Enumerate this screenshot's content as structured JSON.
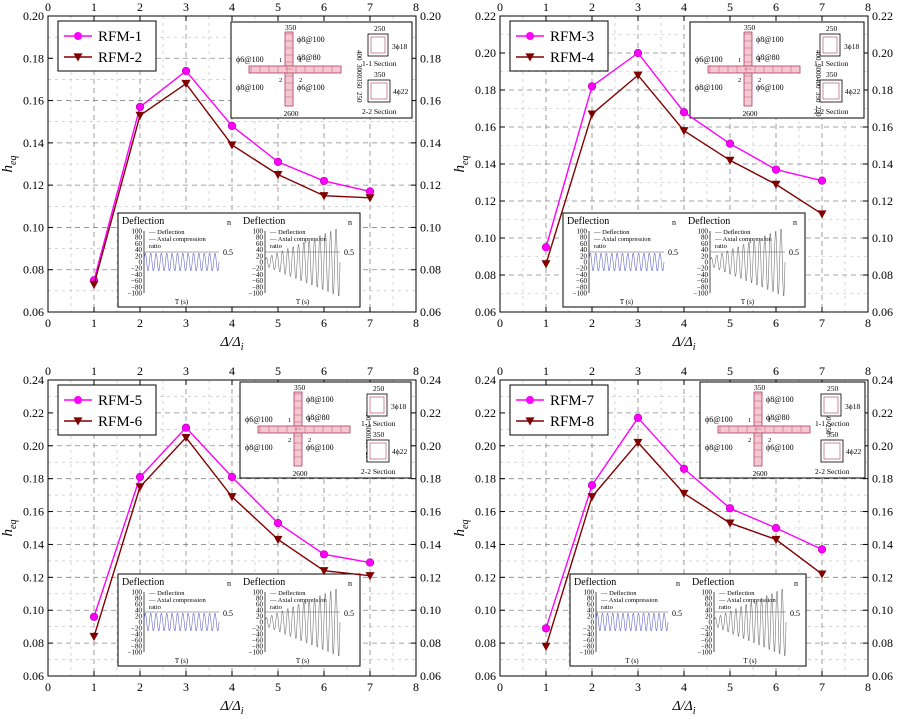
{
  "chart_data": [
    {
      "type": "line",
      "x": [
        1,
        2,
        3,
        4,
        5,
        6,
        7
      ],
      "xlabel": "Δ/Δi",
      "ylabel": "heq",
      "xlim": [
        0,
        8
      ],
      "ylim": [
        0.06,
        0.2
      ],
      "yticks": [
        "0.06",
        "0.08",
        "0.10",
        "0.12",
        "0.14",
        "0.16",
        "0.18",
        "0.20"
      ],
      "xticks": [
        "0",
        "1",
        "2",
        "3",
        "4",
        "5",
        "6",
        "7",
        "8"
      ],
      "grid": true,
      "legend_position": "top-left",
      "series": [
        {
          "name": "RFM-1",
          "color": "#ff00ff",
          "marker": "circle",
          "values": [
            0.075,
            0.157,
            0.174,
            0.148,
            0.131,
            0.122,
            0.117
          ]
        },
        {
          "name": "RFM-2",
          "color": "#800000",
          "marker": "triangle-down",
          "values": [
            0.073,
            0.153,
            0.168,
            0.139,
            0.125,
            0.115,
            0.114
          ]
        }
      ],
      "inset_top": {
        "dims": [
          "350",
          "2600",
          "400",
          "3000",
          "350",
          "250"
        ],
        "rebar": [
          "ϕ6@100",
          "ϕ8@100",
          "ϕ8@80",
          "ϕ8@100",
          "ϕ6@100",
          "3ϕ18",
          "4ϕ22"
        ],
        "section_labels": [
          "1-1 Section",
          "2-2 Section"
        ],
        "marks": [
          "1",
          "1",
          "2",
          "2"
        ]
      },
      "inset_bottom": {
        "left_title": "Deflection",
        "right_title": "Deflection",
        "legend": [
          "Deflection",
          "Axial compression ratio"
        ],
        "y_ticks": [
          "100",
          "80",
          "60",
          "40",
          "20",
          "0",
          "−20",
          "−40",
          "−60",
          "−80",
          "−100"
        ],
        "xlabel": "T (s)",
        "n_label": "n",
        "n_value": "0.5"
      }
    },
    {
      "type": "line",
      "x": [
        1,
        2,
        3,
        4,
        5,
        6,
        7
      ],
      "xlabel": "Δ/Δi",
      "ylabel": "heq",
      "xlim": [
        0,
        8
      ],
      "ylim": [
        0.06,
        0.22
      ],
      "yticks": [
        "0.06",
        "0.08",
        "0.10",
        "0.12",
        "0.14",
        "0.16",
        "0.18",
        "0.20",
        "0.22"
      ],
      "xticks": [
        "0",
        "1",
        "2",
        "3",
        "4",
        "5",
        "6",
        "7",
        "8"
      ],
      "grid": true,
      "legend_position": "top-left",
      "series": [
        {
          "name": "RFM-3",
          "color": "#ff00ff",
          "marker": "circle",
          "values": [
            0.095,
            0.182,
            0.2,
            0.168,
            0.151,
            0.137,
            0.131
          ]
        },
        {
          "name": "RFM-4",
          "color": "#800000",
          "marker": "triangle-down",
          "values": [
            0.086,
            0.167,
            0.188,
            0.158,
            0.142,
            0.129,
            0.113
          ]
        }
      ],
      "inset_top": {
        "dims": [
          "350",
          "2600",
          "400",
          "3000",
          "400",
          "350",
          "250"
        ],
        "rebar": [
          "ϕ6@100",
          "ϕ8@100",
          "ϕ8@80",
          "ϕ8@100",
          "ϕ6@100",
          "3ϕ18",
          "4ϕ22"
        ],
        "section_labels": [
          "1-1 Section",
          "2-2 Section"
        ],
        "marks": [
          "1",
          "1",
          "2",
          "2"
        ]
      },
      "inset_bottom": {
        "left_title": "Deflection",
        "right_title": "Deflection",
        "legend": [
          "Deflection",
          "Axial compression ratio"
        ],
        "y_ticks": [
          "100",
          "80",
          "60",
          "40",
          "20",
          "0",
          "−20",
          "−40",
          "−60",
          "−80",
          "−100"
        ],
        "xlabel": "T (s)",
        "n_label": "n",
        "n_value": "0.5"
      }
    },
    {
      "type": "line",
      "x": [
        1,
        2,
        3,
        4,
        5,
        6,
        7
      ],
      "xlabel": "Δ/Δi",
      "ylabel": "heq",
      "xlim": [
        0,
        8
      ],
      "ylim": [
        0.06,
        0.24
      ],
      "yticks": [
        "0.06",
        "0.08",
        "0.10",
        "0.12",
        "0.14",
        "0.16",
        "0.18",
        "0.20",
        "0.22",
        "0.24"
      ],
      "xticks": [
        "0",
        "1",
        "2",
        "3",
        "4",
        "5",
        "6",
        "7",
        "8"
      ],
      "grid": true,
      "legend_position": "top-left",
      "series": [
        {
          "name": "RFM-5",
          "color": "#ff00ff",
          "marker": "circle",
          "values": [
            0.096,
            0.181,
            0.211,
            0.181,
            0.153,
            0.134,
            0.129
          ]
        },
        {
          "name": "RFM-6",
          "color": "#800000",
          "marker": "triangle-down",
          "values": [
            0.084,
            0.175,
            0.205,
            0.169,
            0.143,
            0.124,
            0.121
          ]
        }
      ],
      "inset_top": {
        "dims": [
          "350",
          "2600",
          "400",
          "3000",
          "350",
          "250"
        ],
        "rebar": [
          "ϕ6@100",
          "ϕ8@100",
          "ϕ8@80",
          "ϕ8@100",
          "ϕ6@100",
          "3ϕ18",
          "4ϕ22"
        ],
        "section_labels": [
          "1-1 Section",
          "2-2 Section"
        ],
        "marks": [
          "1",
          "1",
          "2",
          "2"
        ]
      },
      "inset_bottom": {
        "left_title": "Deflection",
        "right_title": "Deflection",
        "legend": [
          "Deflection",
          "Axial compression ratio"
        ],
        "y_ticks": [
          "100",
          "80",
          "60",
          "40",
          "20",
          "0",
          "−20",
          "−40",
          "−60",
          "−80",
          "−100"
        ],
        "xlabel": "T (s)",
        "n_label": "n",
        "n_value": "0.5"
      }
    },
    {
      "type": "line",
      "x": [
        1,
        2,
        3,
        4,
        5,
        6,
        7
      ],
      "xlabel": "Δ/Δi",
      "ylabel": "heq",
      "xlim": [
        0,
        8
      ],
      "ylim": [
        0.06,
        0.24
      ],
      "yticks": [
        "0.06",
        "0.08",
        "0.10",
        "0.12",
        "0.14",
        "0.16",
        "0.18",
        "0.20",
        "0.22",
        "0.24"
      ],
      "xticks": [
        "0",
        "1",
        "2",
        "3",
        "4",
        "5",
        "6",
        "7",
        "8"
      ],
      "grid": true,
      "legend_position": "top-left",
      "series": [
        {
          "name": "RFM-7",
          "color": "#ff00ff",
          "marker": "circle",
          "values": [
            0.089,
            0.176,
            0.217,
            0.186,
            0.162,
            0.15,
            0.137
          ]
        },
        {
          "name": "RFM-8",
          "color": "#800000",
          "marker": "triangle-down",
          "values": [
            0.078,
            0.169,
            0.202,
            0.171,
            0.153,
            0.143,
            0.122
          ]
        }
      ],
      "inset_top": {
        "dims": [
          "350",
          "2600",
          "350",
          "250"
        ],
        "rebar": [
          "ϕ6@100",
          "ϕ8@100",
          "ϕ8@80",
          "ϕ8@100",
          "ϕ6@100",
          "3ϕ18",
          "4ϕ22"
        ],
        "section_labels": [
          "1-1 Section",
          "2-2 Section"
        ],
        "marks": [
          "1",
          "1",
          "2",
          "2"
        ]
      },
      "inset_bottom": {
        "left_title": "Deflection",
        "right_title": "Deflection",
        "legend": [
          "Deflection",
          "Axial compression ratio"
        ],
        "y_ticks": [
          "100",
          "80",
          "60",
          "40",
          "20",
          "0",
          "−20",
          "−40",
          "−60",
          "−80",
          "−100"
        ],
        "xlabel": "T (s)",
        "n_label": "n",
        "n_value": "0.5"
      }
    }
  ]
}
